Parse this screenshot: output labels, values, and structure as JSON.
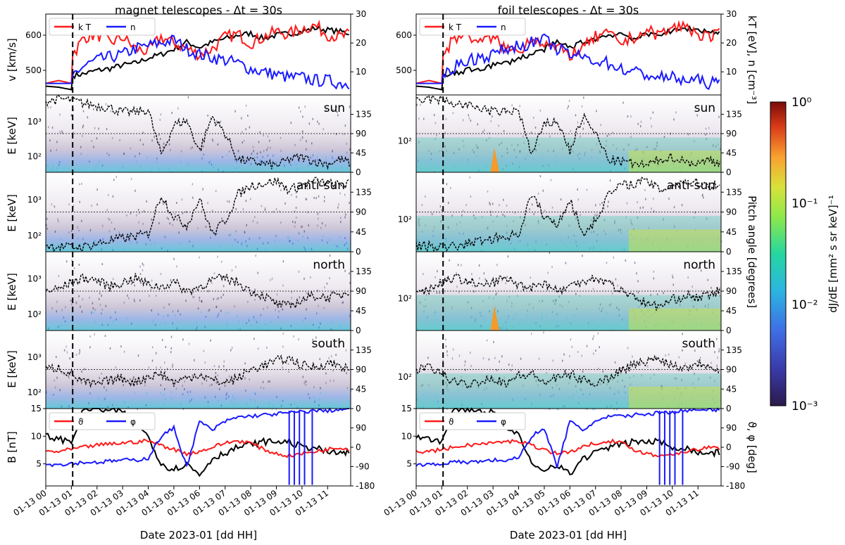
{
  "chart_data": {
    "type": "multi-panel time series and spectrograms",
    "columns": [
      {
        "title": "magnet telescopes  -  Δt = 30s",
        "channel_labels": [
          "sun",
          "anti-sun",
          "north",
          "south"
        ]
      },
      {
        "title": "foil telescopes  -  Δt = 30s",
        "channel_labels": [
          "sun",
          "anti-sun",
          "north",
          "south"
        ]
      }
    ],
    "xlabel": "Date 2023-01 [dd HH]",
    "x_ticks": [
      "01-13 00",
      "01-13 01",
      "01-13 02",
      "01-13 03",
      "01-13 04",
      "01-13 05",
      "01-13 06",
      "01-13 07",
      "01-13 08",
      "01-13 09",
      "01-13 10",
      "01-13 11"
    ],
    "x_range_hours": [
      0,
      11.9
    ],
    "event_marker_hour": 1.05,
    "solar_wind_panel": {
      "left_ylabel": "v [km/s]",
      "left_ticks": [
        500,
        600
      ],
      "left_range": [
        430,
        660
      ],
      "right_ylabel": "kT [eV], n [cm⁻³]",
      "right_ticks": [
        10,
        20,
        30
      ],
      "right_range": [
        2,
        30
      ],
      "legend": [
        "k T",
        "n"
      ],
      "series": [
        {
          "name": "v",
          "color": "#000000",
          "axis": "left",
          "hours": [
            0,
            0.5,
            1.0,
            1.05,
            1.5,
            2.0,
            2.5,
            3.0,
            3.5,
            4.0,
            4.5,
            5.0,
            5.5,
            6.0,
            6.5,
            7.0,
            7.5,
            8.0,
            8.5,
            9.0,
            9.5,
            10.0,
            10.5,
            11.0,
            11.5,
            11.9
          ],
          "values": [
            455,
            452,
            445,
            485,
            490,
            500,
            505,
            515,
            520,
            535,
            545,
            560,
            580,
            565,
            580,
            590,
            600,
            605,
            590,
            600,
            605,
            610,
            620,
            615,
            610,
            605
          ]
        },
        {
          "name": "k T",
          "color": "#ff1a1a",
          "axis": "right",
          "hours": [
            0,
            0.5,
            1.0,
            1.05,
            1.5,
            2.0,
            2.5,
            3.0,
            3.5,
            4.0,
            4.5,
            5.0,
            5.5,
            6.0,
            6.5,
            7.0,
            7.5,
            8.0,
            8.5,
            9.0,
            9.5,
            10.0,
            10.5,
            11.0,
            11.5,
            11.9
          ],
          "values": [
            6,
            7,
            6,
            16,
            22,
            23,
            20,
            22,
            18,
            17,
            22,
            20,
            18,
            16,
            18,
            22,
            23,
            20,
            22,
            24,
            23,
            25,
            26,
            23,
            22,
            23
          ]
        },
        {
          "name": "n",
          "color": "#1a1aff",
          "axis": "right",
          "hours": [
            0,
            0.5,
            1.0,
            1.05,
            1.5,
            2.0,
            2.5,
            3.0,
            3.5,
            4.0,
            4.5,
            5.0,
            5.5,
            6.0,
            6.5,
            7.0,
            7.5,
            8.0,
            8.5,
            9.0,
            9.5,
            10.0,
            10.5,
            11.0,
            11.5,
            11.9
          ],
          "values": [
            6,
            6,
            6,
            9,
            12,
            14,
            15,
            16,
            18,
            19,
            20,
            21,
            18,
            16,
            15,
            14,
            13,
            11,
            10,
            9,
            8,
            8,
            7,
            7,
            6,
            6
          ]
        }
      ]
    },
    "spectrogram_panels": {
      "ylabel": "E [keV]",
      "pitch_angle_ticks": [
        0,
        45,
        90,
        135
      ],
      "pitch_angle_label": "Pitch angle [degrees]",
      "magnet_e_ticks": [
        "10²",
        "10³"
      ],
      "foil_e_ticks": [
        "10²"
      ],
      "pitch_angle_series": [
        {
          "channel": "sun",
          "hours": [
            0,
            0.5,
            1.0,
            1.5,
            2.0,
            2.5,
            3.0,
            3.5,
            4.0,
            4.5,
            5.0,
            5.5,
            6.0,
            6.5,
            7.0,
            7.5,
            8.0,
            8.5,
            9.0,
            9.5,
            10.0,
            10.5,
            11.0,
            11.5,
            11.9
          ],
          "values": [
            165,
            170,
            168,
            160,
            155,
            150,
            140,
            140,
            145,
            40,
            110,
            120,
            50,
            130,
            90,
            30,
            25,
            20,
            15,
            30,
            35,
            25,
            20,
            30,
            20
          ]
        },
        {
          "channel": "anti-sun",
          "hours": [
            0,
            0.5,
            1.0,
            1.5,
            2.0,
            2.5,
            3.0,
            3.5,
            4.0,
            4.5,
            5.0,
            5.5,
            6.0,
            6.5,
            7.0,
            7.5,
            8.0,
            8.5,
            9.0,
            9.5,
            10.0,
            10.5,
            11.0,
            11.5,
            11.9
          ],
          "values": [
            15,
            12,
            10,
            12,
            18,
            25,
            30,
            35,
            40,
            130,
            80,
            60,
            120,
            40,
            70,
            130,
            150,
            155,
            160,
            140,
            150,
            160,
            155,
            150,
            155
          ]
        },
        {
          "channel": "north",
          "hours": [
            0,
            0.5,
            1.0,
            1.5,
            2.0,
            2.5,
            3.0,
            3.5,
            4.0,
            4.5,
            5.0,
            5.5,
            6.0,
            6.5,
            7.0,
            7.5,
            8.0,
            8.5,
            9.0,
            9.5,
            10.0,
            10.5,
            11.0,
            11.5,
            11.9
          ],
          "values": [
            90,
            95,
            110,
            120,
            115,
            100,
            110,
            120,
            105,
            100,
            110,
            90,
            100,
            115,
            120,
            110,
            90,
            80,
            60,
            55,
            70,
            80,
            75,
            80,
            95
          ]
        },
        {
          "channel": "south",
          "hours": [
            0,
            0.5,
            1.0,
            1.5,
            2.0,
            2.5,
            3.0,
            3.5,
            4.0,
            4.5,
            5.0,
            5.5,
            6.0,
            6.5,
            7.0,
            7.5,
            8.0,
            8.5,
            9.0,
            9.5,
            10.0,
            10.5,
            11.0,
            11.5,
            11.9
          ],
          "values": [
            90,
            95,
            80,
            60,
            55,
            65,
            70,
            60,
            75,
            80,
            60,
            70,
            80,
            65,
            60,
            70,
            90,
            100,
            110,
            115,
            100,
            95,
            105,
            100,
            85
          ]
        }
      ]
    },
    "magnetic_field_panel": {
      "left_ylabel": "B [nT]",
      "left_ticks": [
        5,
        10,
        15
      ],
      "left_range": [
        1,
        15
      ],
      "right_ylabel": "ϑ, φ [deg]",
      "right_ticks": [
        -180,
        -90,
        0,
        90
      ],
      "right_range": [
        -180,
        180
      ],
      "legend": [
        "ϑ",
        "φ"
      ],
      "series": [
        {
          "name": "B",
          "color": "#000000",
          "axis": "left",
          "hours": [
            0,
            0.5,
            1.0,
            1.5,
            2.0,
            2.5,
            3.0,
            3.5,
            4.0,
            4.5,
            5.0,
            5.5,
            6.0,
            6.5,
            7.0,
            7.5,
            8.0,
            8.5,
            9.0,
            9.5,
            10.0,
            10.5,
            11.0,
            11.5,
            11.9
          ],
          "values": [
            10,
            9.5,
            9,
            15,
            15,
            14.5,
            14.5,
            12,
            10,
            5,
            4,
            5,
            3,
            6,
            7,
            8,
            8.5,
            9,
            9,
            9,
            8,
            8,
            7,
            7,
            7
          ]
        },
        {
          "name": "ϑ",
          "color": "#ff1a1a",
          "axis": "right",
          "hours": [
            0,
            0.5,
            1.0,
            1.5,
            2.0,
            2.5,
            3.0,
            3.5,
            4.0,
            4.5,
            5.0,
            5.5,
            6.0,
            6.5,
            7.0,
            7.5,
            8.0,
            8.5,
            9.0,
            9.5,
            10.0,
            10.5,
            11.0,
            11.5,
            11.9
          ],
          "values": [
            -20,
            -20,
            -10,
            0,
            10,
            15,
            20,
            25,
            30,
            10,
            -10,
            -30,
            -20,
            0,
            20,
            30,
            20,
            -10,
            -30,
            -40,
            -30,
            -20,
            -10,
            0,
            -10
          ]
        },
        {
          "name": "φ",
          "color": "#1a1aff",
          "axis": "right",
          "hours": [
            0,
            0.5,
            1.0,
            1.5,
            2.0,
            2.5,
            3.0,
            3.5,
            4.0,
            4.5,
            5.0,
            5.5,
            6.0,
            6.5,
            7.0,
            7.5,
            8.0,
            8.5,
            9.0,
            9.5,
            10.0,
            10.5,
            11.0,
            11.5,
            11.9
          ],
          "values": [
            -80,
            -80,
            -75,
            -70,
            -70,
            -65,
            -60,
            -60,
            -50,
            50,
            90,
            -90,
            120,
            80,
            120,
            140,
            145,
            150,
            155,
            160,
            165,
            170,
            170,
            175,
            175
          ]
        }
      ]
    },
    "colorbar": {
      "label": "dJ/dE [mm² s sr keV]⁻¹",
      "ticks": [
        "10⁰",
        "10⁻¹",
        "10⁻²",
        "10⁻³"
      ],
      "range": [
        0.001,
        1
      ],
      "scale": "log"
    }
  }
}
